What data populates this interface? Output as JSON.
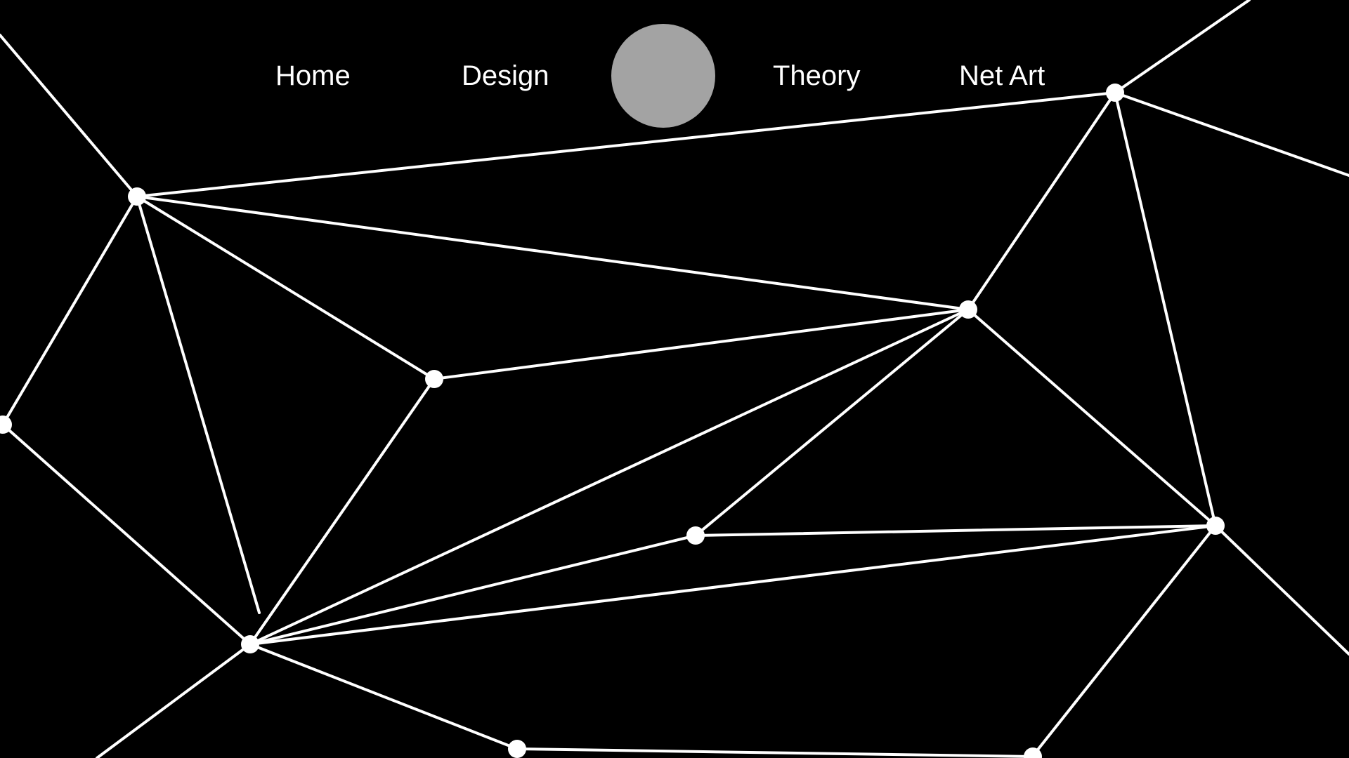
{
  "nav": {
    "items": [
      {
        "label": "Home"
      },
      {
        "label": "Design"
      },
      {
        "label": "Theory"
      },
      {
        "label": "Net Art"
      }
    ]
  },
  "colors": {
    "background": "#000000",
    "lines": "#ffffff",
    "nodes": "#ffffff",
    "logo": "#a3a3a3",
    "text": "#ffffff"
  }
}
